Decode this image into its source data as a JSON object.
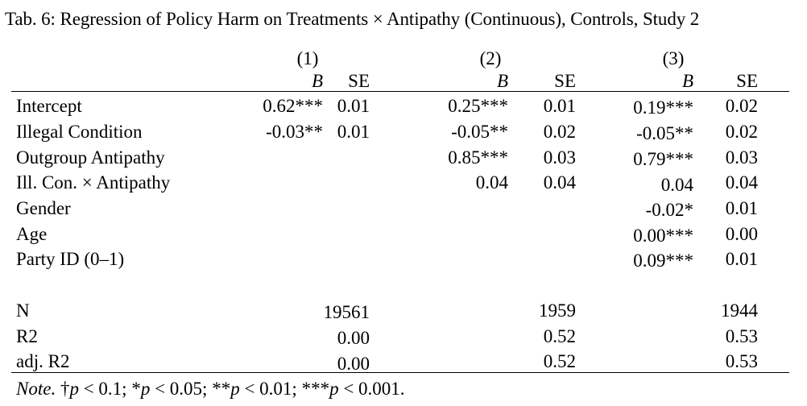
{
  "caption": "Tab. 6: Regression of Policy Harm on Treatments × Antipathy (Continuous), Controls, Study 2",
  "models": [
    {
      "number": "(1)",
      "b_label": "B",
      "se_label": "SE"
    },
    {
      "number": "(2)",
      "b_label": "B",
      "se_label": "SE"
    },
    {
      "number": "(3)",
      "b_label": "B",
      "se_label": "SE"
    }
  ],
  "rows": [
    {
      "label": "Intercept",
      "m1_b": "0.62***",
      "m1_se": "0.01",
      "m2_b": "0.25***",
      "m2_se": "0.01",
      "m3_b": "0.19***",
      "m3_se": "0.02"
    },
    {
      "label": "Illegal Condition",
      "m1_b": "-0.03**",
      "m1_se": "0.01",
      "m2_b": "-0.05**",
      "m2_se": "0.02",
      "m3_b": "-0.05**",
      "m3_se": "0.02"
    },
    {
      "label": "Outgroup Antipathy",
      "m1_b": "",
      "m1_se": "",
      "m2_b": "0.85***",
      "m2_se": "0.03",
      "m3_b": "0.79***",
      "m3_se": "0.03"
    },
    {
      "label": "Ill. Con. × Antipathy",
      "m1_b": "",
      "m1_se": "",
      "m2_b": "0.04",
      "m2_se": "0.04",
      "m3_b": "0.04",
      "m3_se": "0.04"
    },
    {
      "label": "Gender",
      "m1_b": "",
      "m1_se": "",
      "m2_b": "",
      "m2_se": "",
      "m3_b": "-0.02*",
      "m3_se": "0.01"
    },
    {
      "label": "Age",
      "m1_b": "",
      "m1_se": "",
      "m2_b": "",
      "m2_se": "",
      "m3_b": "0.00***",
      "m3_se": "0.00"
    },
    {
      "label": "Party ID (0–1)",
      "m1_b": "",
      "m1_se": "",
      "m2_b": "",
      "m2_se": "",
      "m3_b": "0.09***",
      "m3_se": "0.01"
    }
  ],
  "stats": [
    {
      "label": "N",
      "m1": "19561",
      "m2": "1959",
      "m3": "1944"
    },
    {
      "label": "R2",
      "m1": "0.00",
      "m2": "0.52",
      "m3": "0.53"
    },
    {
      "label": "adj. R2",
      "m1": "0.00",
      "m2": "0.52",
      "m3": "0.53"
    }
  ],
  "note": {
    "prefix": "Note.",
    "text_1": " †",
    "p1": "p",
    "text_2": " < 0.1; *",
    "p2": "p",
    "text_3": " < 0.05; **",
    "p3": "p",
    "text_4": " < 0.01; ***",
    "p4": "p",
    "text_5": " < 0.001."
  }
}
